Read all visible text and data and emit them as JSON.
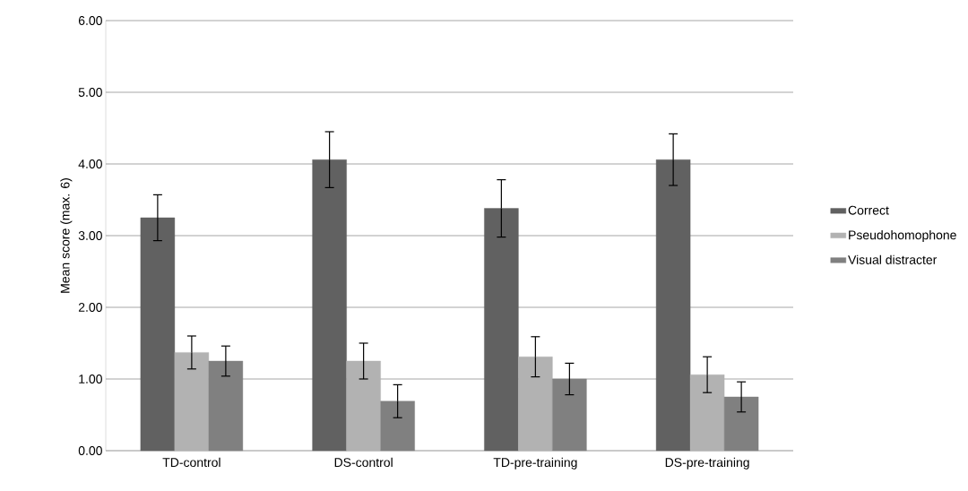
{
  "chart_data": {
    "type": "bar",
    "ylabel": "Mean score (max. 6)",
    "categories": [
      "TD-control",
      "DS-control",
      "TD-pre-training",
      "DS-pre-training"
    ],
    "series": [
      {
        "name": "Correct",
        "color": "#616161",
        "values": [
          3.25,
          4.06,
          3.38,
          4.06
        ],
        "errors": [
          0.32,
          0.39,
          0.4,
          0.36
        ]
      },
      {
        "name": "Pseudohomophone",
        "color": "#b2b2b2",
        "values": [
          1.37,
          1.25,
          1.31,
          1.06
        ],
        "errors": [
          0.23,
          0.25,
          0.28,
          0.25
        ]
      },
      {
        "name": "Visual distracter",
        "color": "#808080",
        "values": [
          1.25,
          0.69,
          1.0,
          0.75
        ],
        "errors": [
          0.21,
          0.23,
          0.22,
          0.21
        ]
      }
    ],
    "ylim": [
      0,
      6
    ],
    "yticks": [
      {
        "value": 0,
        "label": "0.00"
      },
      {
        "value": 1,
        "label": "1.00"
      },
      {
        "value": 2,
        "label": "2.00"
      },
      {
        "value": 3,
        "label": "3.00"
      },
      {
        "value": 4,
        "label": "4.00"
      },
      {
        "value": 5,
        "label": "5.00"
      },
      {
        "value": 6,
        "label": "6.00"
      }
    ],
    "grid": "y",
    "legend": "right"
  }
}
